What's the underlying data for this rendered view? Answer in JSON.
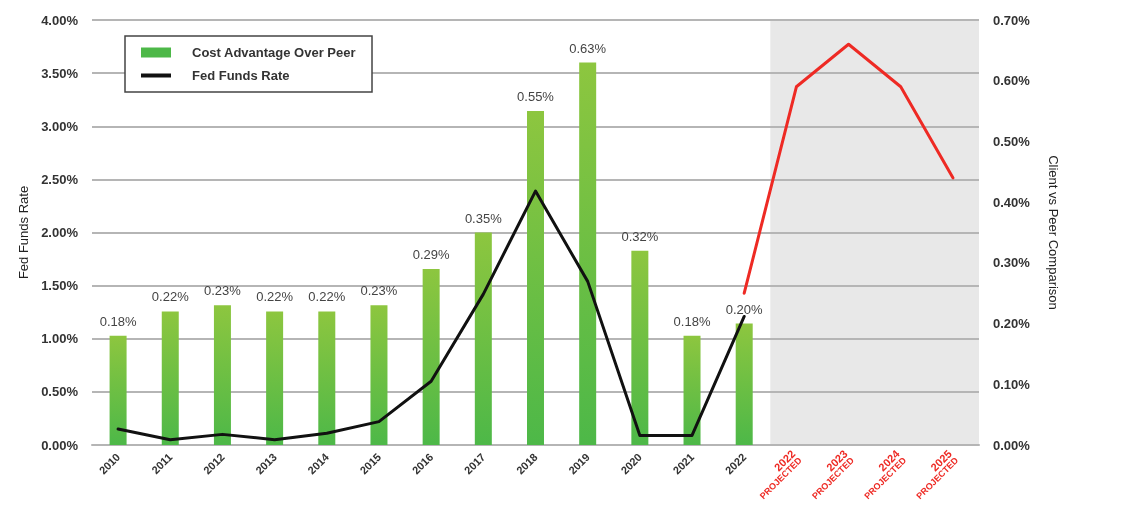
{
  "chart_data": {
    "type": "bar",
    "ylabel": "Fed Funds Rate",
    "y2label": "Client vs Peer Comparison",
    "categories": [
      "2010",
      "2011",
      "2012",
      "2013",
      "2014",
      "2015",
      "2016",
      "2017",
      "2018",
      "2019",
      "2020",
      "2021",
      "2022",
      "2022 PROJECTED",
      "2023 PROJECTED",
      "2024 PROJECTED",
      "2025 PROJECTED"
    ],
    "series": [
      {
        "name": "Cost Advantage Over Peer",
        "axis": "y2",
        "color": "#4db848",
        "values": [
          0.18,
          0.22,
          0.23,
          0.22,
          0.22,
          0.23,
          0.29,
          0.35,
          0.55,
          0.63,
          0.32,
          0.18,
          0.2,
          null,
          null,
          null,
          null
        ],
        "value_labels": [
          "0.18%",
          "0.22%",
          "0.23%",
          "0.22%",
          "0.22%",
          "0.23%",
          "0.29%",
          "0.35%",
          "0.55%",
          "0.63%",
          "0.32%",
          "0.18%",
          "0.20%",
          null,
          null,
          null,
          null
        ]
      },
      {
        "name": "Fed Funds Rate",
        "type": "line",
        "color": "#111111",
        "values": [
          0.15,
          0.05,
          0.1,
          0.05,
          0.11,
          0.22,
          0.6,
          1.42,
          2.39,
          1.54,
          0.09,
          0.09,
          1.21,
          null,
          null,
          null,
          null
        ]
      },
      {
        "type": "line",
        "axis": "y2",
        "color": "#ee2a24",
        "values": [
          null,
          null,
          null,
          null,
          null,
          null,
          null,
          null,
          null,
          null,
          null,
          null,
          0.25,
          0.59,
          0.66,
          0.59,
          0.44
        ]
      }
    ],
    "ylim": [
      0,
      4
    ],
    "yticks": [
      {
        "value": 0,
        "label": "0.00%"
      },
      {
        "value": 0.5,
        "label": "0.50%"
      },
      {
        "value": 1,
        "label": "1.00%"
      },
      {
        "value": 1.5,
        "label": "1.50%"
      },
      {
        "value": 2,
        "label": "2.00%"
      },
      {
        "value": 2.5,
        "label": "2.50%"
      },
      {
        "value": 3,
        "label": "3.00%"
      },
      {
        "value": 3.5,
        "label": "3.50%"
      },
      {
        "value": 4,
        "label": "4.00%"
      }
    ],
    "y2lim": [
      0,
      0.7
    ],
    "y2ticks": [
      {
        "value": 0,
        "label": "0.00%"
      },
      {
        "value": 0.1,
        "label": "0.10%"
      },
      {
        "value": 0.2,
        "label": "0.20%"
      },
      {
        "value": 0.3,
        "label": "0.30%"
      },
      {
        "value": 0.4,
        "label": "0.40%"
      },
      {
        "value": 0.5,
        "label": "0.50%"
      },
      {
        "value": 0.6,
        "label": "0.60%"
      },
      {
        "value": 0.7,
        "label": "0.70%"
      }
    ],
    "bands": [
      {
        "axis": "x",
        "from": "2022 PROJECTED",
        "to": "2025 PROJECTED",
        "color": "#e8e8e8"
      }
    ],
    "grid": "y",
    "legend": "top left",
    "marker": "none",
    "line_style": "solid"
  }
}
